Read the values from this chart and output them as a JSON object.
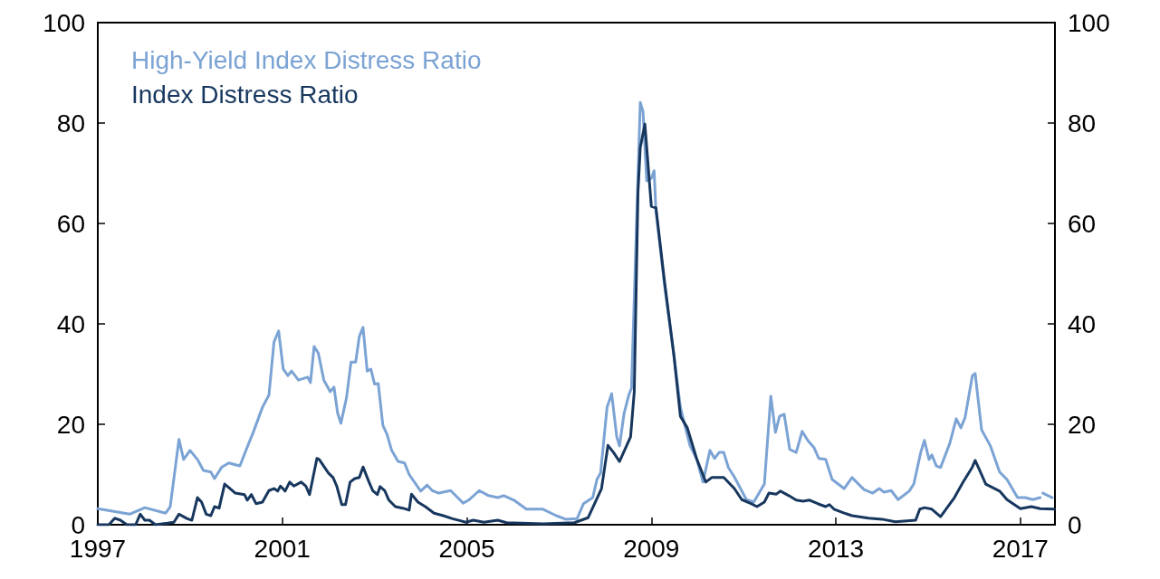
{
  "chart_data": {
    "type": "line",
    "xlim": [
      1997,
      2017.75
    ],
    "xticks": [
      1997,
      2001,
      2005,
      2009,
      2013,
      2017
    ],
    "ylim": [
      0,
      100
    ],
    "yticks": [
      0,
      20,
      40,
      60,
      80,
      100
    ],
    "y2lim": [
      0,
      100
    ],
    "y2ticks": [
      0,
      20,
      40,
      60,
      80,
      100
    ],
    "grid": false,
    "legend": "top left",
    "marker": "none",
    "line_style": "solid",
    "series": [
      {
        "name": "High-Yield Index Distress Ratio",
        "color": "#7ba3d4",
        "x": [
          1997.0,
          1997.69,
          1998.02,
          1998.47,
          1998.57,
          1998.76,
          1998.86,
          1999.0,
          1999.16,
          1999.29,
          1999.45,
          1999.53,
          1999.69,
          1999.84,
          2000.08,
          2000.22,
          2000.37,
          2000.57,
          2000.71,
          2000.82,
          2000.92,
          2001.02,
          2001.12,
          2001.2,
          2001.35,
          2001.55,
          2001.61,
          2001.69,
          2001.78,
          2001.9,
          2002.04,
          2002.12,
          2002.2,
          2002.27,
          2002.39,
          2002.49,
          2002.59,
          2002.67,
          2002.75,
          2002.84,
          2002.92,
          2003.0,
          2003.08,
          2003.18,
          2003.27,
          2003.37,
          2003.51,
          2003.65,
          2003.75,
          2004.0,
          2004.14,
          2004.25,
          2004.39,
          2004.65,
          2004.92,
          2005.04,
          2005.27,
          2005.47,
          2005.67,
          2005.8,
          2006.02,
          2006.29,
          2006.65,
          2006.94,
          2007.14,
          2007.39,
          2007.53,
          2007.73,
          2007.82,
          2007.9,
          2008.04,
          2008.14,
          2008.25,
          2008.31,
          2008.41,
          2008.51,
          2008.57,
          2008.76,
          2008.82,
          2008.9,
          2009.0,
          2009.06,
          2009.1,
          2009.29,
          2009.49,
          2009.63,
          2009.71,
          2009.84,
          2009.98,
          2010.12,
          2010.27,
          2010.37,
          2010.47,
          2010.57,
          2010.67,
          2010.8,
          2011.06,
          2011.22,
          2011.45,
          2011.59,
          2011.69,
          2011.78,
          2011.88,
          2012.0,
          2012.14,
          2012.27,
          2012.39,
          2012.53,
          2012.63,
          2012.78,
          2012.92,
          2013.18,
          2013.35,
          2013.61,
          2013.8,
          2013.94,
          2014.04,
          2014.2,
          2014.35,
          2014.59,
          2014.69,
          2014.84,
          2014.92,
          2015.02,
          2015.08,
          2015.18,
          2015.27,
          2015.47,
          2015.61,
          2015.71,
          2015.8,
          2015.96,
          2016.02,
          2016.16,
          2016.35,
          2016.55,
          2016.71,
          2016.94,
          2017.1,
          2017.27,
          2017.43,
          2017.45,
          2017.49,
          2017.69
        ],
        "values": [
          3.2,
          2.1,
          3.4,
          2.3,
          3.6,
          17,
          13,
          14.8,
          13,
          10.8,
          10.5,
          9.2,
          11.5,
          12.3,
          11.7,
          15,
          18.4,
          23.4,
          25.8,
          36.4,
          38.6,
          31,
          29.7,
          30.6,
          28.8,
          29.4,
          28.3,
          35.5,
          34.2,
          28.8,
          26.5,
          27.4,
          22.2,
          20.2,
          25.2,
          32.4,
          32.4,
          37.5,
          39.3,
          30.6,
          31,
          28,
          28.1,
          19.8,
          18,
          14.8,
          12.6,
          12.3,
          10,
          6.7,
          7.9,
          6.8,
          6.3,
          6.8,
          4.3,
          4.9,
          6.8,
          5.8,
          5.4,
          5.8,
          4.9,
          3.1,
          3.1,
          1.8,
          1.1,
          1.2,
          4.2,
          5.4,
          9,
          10.3,
          23.4,
          26.1,
          17.5,
          15.7,
          22.2,
          25.8,
          27.2,
          84.1,
          82.3,
          68.5,
          69,
          70.5,
          62.5,
          47.4,
          33.7,
          23.4,
          20.4,
          15.7,
          13.2,
          8.5,
          14.8,
          13.2,
          14.4,
          14.4,
          11.4,
          9.5,
          5,
          4.5,
          8.1,
          25.6,
          18.4,
          21.6,
          22,
          15,
          14.4,
          18.6,
          16.8,
          15.3,
          13.2,
          13,
          9,
          7.2,
          9.4,
          7,
          6.3,
          7.2,
          6.5,
          6.8,
          5,
          6.7,
          8.1,
          14.4,
          16.8,
          13,
          13.9,
          11.7,
          11.4,
          16.2,
          21.1,
          19.3,
          21.3,
          29.7,
          30.1,
          18.9,
          15.7,
          10.5,
          9,
          5.4,
          5.4,
          5,
          5.4,
          null,
          6.3,
          5.4
        ]
      },
      {
        "name": "Index Distress Ratio",
        "color": "#17375e",
        "x": [
          1997.0,
          1997.24,
          1997.37,
          1997.49,
          1997.63,
          1997.82,
          1997.92,
          1998.02,
          1998.12,
          1998.25,
          1998.51,
          1998.65,
          1998.76,
          1998.94,
          1999.04,
          1999.16,
          1999.25,
          1999.35,
          1999.45,
          1999.53,
          1999.63,
          1999.75,
          1999.98,
          2000.18,
          2000.24,
          2000.33,
          2000.43,
          2000.57,
          2000.71,
          2000.82,
          2000.9,
          2000.96,
          2001.06,
          2001.16,
          2001.25,
          2001.41,
          2001.51,
          2001.59,
          2001.69,
          2001.75,
          2001.8,
          2002.0,
          2002.1,
          2002.18,
          2002.29,
          2002.37,
          2002.47,
          2002.57,
          2002.67,
          2002.75,
          2002.88,
          2002.96,
          2003.06,
          2003.12,
          2003.22,
          2003.31,
          2003.45,
          2003.61,
          2003.75,
          2003.8,
          2003.94,
          2004.1,
          2004.29,
          2004.49,
          2004.69,
          2004.98,
          2005.14,
          2005.37,
          2005.67,
          2005.86,
          2006.65,
          2007.33,
          2007.63,
          2007.92,
          2008.06,
          2008.18,
          2008.31,
          2008.55,
          2008.63,
          2008.71,
          2008.76,
          2008.86,
          2009.0,
          2009.1,
          2009.29,
          2009.49,
          2009.63,
          2009.78,
          2009.98,
          2010.18,
          2010.31,
          2010.47,
          2010.57,
          2010.8,
          2010.96,
          2011.16,
          2011.29,
          2011.45,
          2011.55,
          2011.71,
          2011.8,
          2011.98,
          2012.14,
          2012.29,
          2012.43,
          2012.63,
          2012.78,
          2012.86,
          2012.96,
          2013.22,
          2013.35,
          2013.71,
          2014.0,
          2014.29,
          2014.73,
          2014.82,
          2014.92,
          2015.08,
          2015.27,
          2015.57,
          2015.76,
          2015.96,
          2016.02,
          2016.12,
          2016.25,
          2016.55,
          2016.71,
          2017.0,
          2017.24,
          2017.43,
          2017.73
        ],
        "values": [
          0,
          0,
          1.3,
          0.9,
          0,
          0,
          2.1,
          0.9,
          0.9,
          0,
          0.3,
          0.5,
          2.1,
          1.2,
          0.9,
          5.4,
          4.5,
          2.1,
          1.8,
          3.6,
          3.3,
          8.1,
          6.3,
          6,
          4.9,
          6,
          4.2,
          4.5,
          6.8,
          7.2,
          6.7,
          7.7,
          6.7,
          8.5,
          7.7,
          8.5,
          7.7,
          6,
          10.5,
          13.2,
          13,
          10.3,
          9.4,
          7.7,
          4,
          4,
          8.5,
          9.2,
          9.4,
          11.5,
          8.5,
          6.8,
          6,
          7.6,
          6.8,
          4.9,
          3.6,
          3.3,
          2.9,
          6.1,
          4.5,
          3.6,
          2.3,
          1.8,
          1.2,
          0.5,
          0.9,
          0.5,
          0.9,
          0.4,
          0.2,
          0.4,
          1.4,
          7.2,
          15.8,
          14.4,
          12.6,
          17.5,
          26.5,
          66.1,
          75.1,
          79.8,
          63.4,
          63.1,
          48.1,
          33.7,
          21.6,
          19.3,
          13.2,
          8.5,
          9.4,
          9.4,
          9.4,
          7.2,
          5,
          4.2,
          3.6,
          4.5,
          6.3,
          6.1,
          6.7,
          5.8,
          4.9,
          4.7,
          4.9,
          4.1,
          3.6,
          4,
          3.1,
          2.2,
          1.8,
          1.3,
          1.1,
          0.6,
          0.9,
          3.1,
          3.4,
          3.1,
          1.6,
          5.4,
          8.5,
          11.5,
          12.8,
          10.8,
          8.1,
          6.7,
          5,
          3.2,
          3.6,
          3.2,
          3.1
        ]
      }
    ]
  }
}
